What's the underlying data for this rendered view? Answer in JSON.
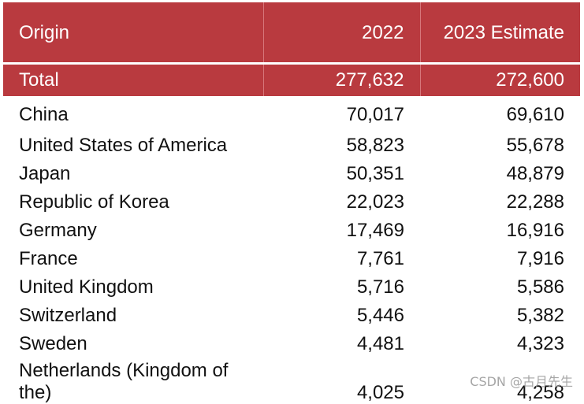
{
  "header": {
    "origin": "Origin",
    "col_2022": "2022",
    "col_2023": "2023 Estimate"
  },
  "total": {
    "label": "Total",
    "v2022": "277,632",
    "v2023": "272,600"
  },
  "rows": [
    {
      "origin": "China",
      "v2022": "70,017",
      "v2023": "69,610"
    },
    {
      "origin": "United States of America",
      "v2022": "58,823",
      "v2023": "55,678"
    },
    {
      "origin": "Japan",
      "v2022": "50,351",
      "v2023": "48,879"
    },
    {
      "origin": "Republic of Korea",
      "v2022": "22,023",
      "v2023": "22,288"
    },
    {
      "origin": "Germany",
      "v2022": "17,469",
      "v2023": "16,916"
    },
    {
      "origin": "France",
      "v2022": "7,761",
      "v2023": "7,916"
    },
    {
      "origin": "United Kingdom",
      "v2022": "5,716",
      "v2023": "5,586"
    },
    {
      "origin": "Switzerland",
      "v2022": "5,446",
      "v2023": "5,382"
    },
    {
      "origin": "Sweden",
      "v2022": "4,481",
      "v2023": "4,323"
    },
    {
      "origin": "Netherlands (Kingdom of the)",
      "v2022": "4,025",
      "v2023": "4,258"
    }
  ],
  "watermark": "CSDN @古月先生",
  "colors": {
    "header_bg": "#b93a3f",
    "header_text": "#ffffff"
  }
}
